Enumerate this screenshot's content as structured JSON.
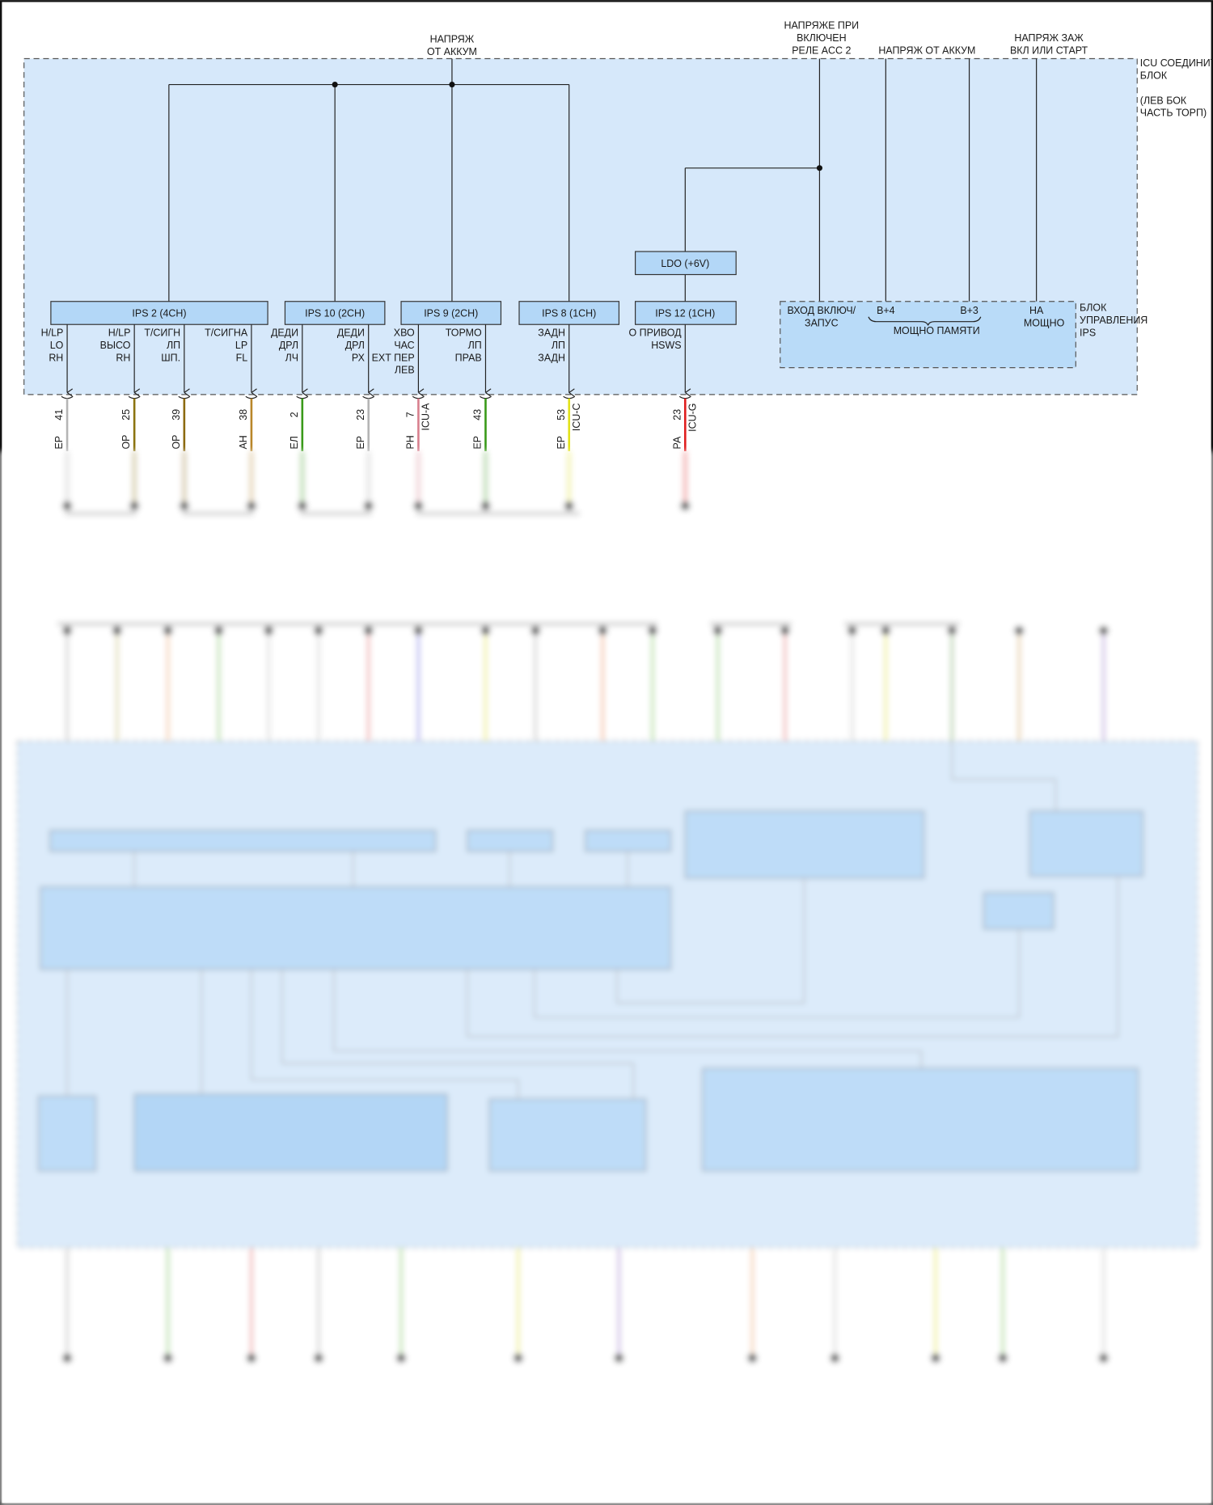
{
  "top_labels": {
    "batt_main": [
      "НАПРЯЖ",
      "ОТ АККУМ"
    ],
    "acc2": [
      "НАПРЯЖЕ ПРИ",
      "ВКЛЮЧЕН",
      "РЕЛЕ ACC 2"
    ],
    "batt_right": "НАПРЯЖ ОТ АККУМ",
    "ign": [
      "НАПРЯЖ ЗАЖ",
      "ВКЛ ИЛИ СТАРТ"
    ]
  },
  "icu_block": {
    "label": [
      "ICU СОЕДИНИТ",
      "БЛОК",
      "(ЛЕВ БОК",
      "ЧАСТЬ ТОРП)"
    ]
  },
  "modules": {
    "ips2": "IPS 2 (4CH)",
    "ips10": "IPS 10 (2CH)",
    "ips9": "IPS 9 (2CH)",
    "ips8": "IPS 8 (1CH)",
    "ips12": "IPS 12 (1CH)",
    "ldo": "LDO (+6V)"
  },
  "ips_control": {
    "label": [
      "БЛОК",
      "УПРАВЛЕНИЯ",
      "IPS"
    ],
    "ign_input": [
      "ВХОД ВКЛЮЧ/",
      "ЗАПУС"
    ],
    "b4": "B+4",
    "b3": "B+3",
    "mem_power": "МОЩНО ПАМЯТИ",
    "power": [
      "НА",
      "МОЩНО"
    ]
  },
  "outputs": [
    {
      "label": [
        "H/LP",
        "LO",
        "RH"
      ],
      "pin": "41",
      "wire": "ЕР",
      "color": "#b5b5b5"
    },
    {
      "label": [
        "H/LP",
        "ВЫСО",
        "RH"
      ],
      "pin": "25",
      "wire": "ОР",
      "color": "#8c7410"
    },
    {
      "label": [
        "Т/СИГН",
        "ЛП",
        "ШП."
      ],
      "pin": "39",
      "wire": "ОР",
      "color": "#8c6a10"
    },
    {
      "label": [
        "Т/СИГНА",
        "LP",
        "FL"
      ],
      "pin": "38",
      "wire": "АН",
      "color": "#b8862a"
    },
    {
      "label": [
        "ДЕДИ",
        "ДРЛ",
        "ЛЧ"
      ],
      "pin": "2",
      "wire": "ЕЛ",
      "color": "#3a9a1a"
    },
    {
      "label": [
        "ДЕДИ",
        "ДРЛ",
        "РХ"
      ],
      "pin": "23",
      "wire": "ЕР",
      "color": "#b5b5b5"
    },
    {
      "label": [
        "ХВО",
        "ЧАС",
        "EXT ПЕР",
        "ЛЕВ"
      ],
      "pin": "7",
      "connector": "ICU-A",
      "wire": "РН",
      "color": "#d8808e"
    },
    {
      "label": [
        "ТОРМО",
        "ЛП",
        "ПРАВ"
      ],
      "pin": "43",
      "wire": "ЕР",
      "color": "#3a9a1a"
    },
    {
      "label": [
        "ЗАДН",
        "ЛП",
        "ЗАДН"
      ],
      "pin": "53",
      "connector": "ICU-C",
      "wire": "ЕР",
      "color": "#e2e21a"
    },
    {
      "label": [
        "О ПРИВОД",
        "HSWS"
      ],
      "pin": "23",
      "connector": "ICU-G",
      "wire": "РА",
      "color": "#e02020"
    }
  ]
}
